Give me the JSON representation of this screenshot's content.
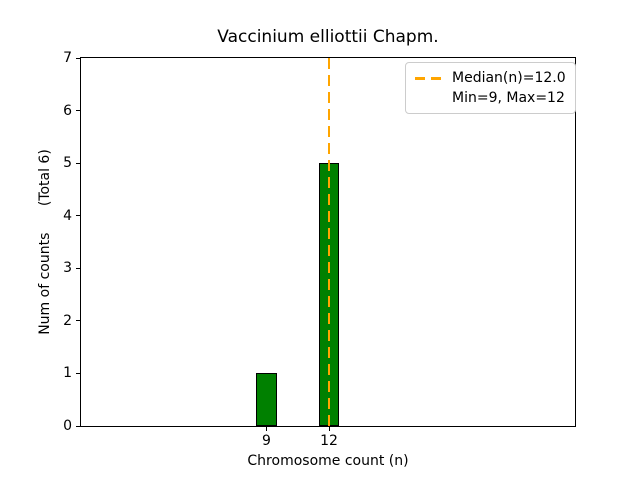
{
  "chart_data": {
    "type": "bar",
    "title": "Vaccinium elliottii Chapm.",
    "xlabel": "Chromosome count (n)",
    "ylabel": "Num of counts",
    "ylabel_annotation": "(Total 6)",
    "x": [
      9,
      12
    ],
    "xtick_labels": [
      "9",
      "12"
    ],
    "values": [
      1,
      5
    ],
    "bar_width": 1,
    "bar_color": "#008000",
    "bar_edge_color": "#000000",
    "xlim": [
      0.1,
      23.8
    ],
    "ylim": [
      0,
      7
    ],
    "yticks": [
      0,
      1,
      2,
      3,
      4,
      5,
      6,
      7
    ],
    "grid": false,
    "median_line": {
      "x": 12,
      "color": "#FFA500",
      "style": "dashed"
    },
    "legend": {
      "position": "upper-right",
      "items": [
        {
          "marker": "dashed-line",
          "color": "#FFA500",
          "label": "Median(n)=12.0"
        },
        {
          "marker": "none",
          "color": "",
          "label": "Min=9, Max=12"
        }
      ]
    }
  }
}
